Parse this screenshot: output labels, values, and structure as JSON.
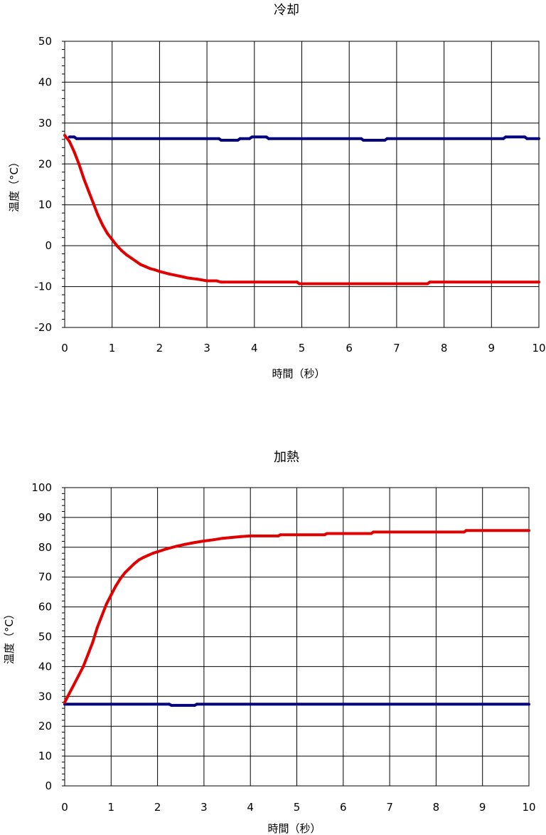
{
  "chart_data": [
    {
      "type": "line",
      "title": "冷却",
      "xlabel": "時間（秒）",
      "ylabel": "温度（°C）",
      "xlim": [
        0,
        10
      ],
      "ylim": [
        -20,
        50
      ],
      "x_ticks": [
        "0",
        "1",
        "2",
        "3",
        "4",
        "5",
        "6",
        "7",
        "8",
        "9",
        "10"
      ],
      "y_ticks": [
        "50",
        "40",
        "30",
        "20",
        "10",
        "0",
        "-10",
        "-20"
      ],
      "grid": true,
      "series": [
        {
          "color": "#000080",
          "points": [
            [
              0.1,
              26.6
            ],
            [
              0.2,
              26.6
            ],
            [
              0.25,
              26.2
            ],
            [
              1,
              26.2
            ],
            [
              2,
              26.2
            ],
            [
              3,
              26.2
            ],
            [
              3.25,
              26.2
            ],
            [
              3.3,
              25.8
            ],
            [
              3.65,
              25.8
            ],
            [
              3.7,
              26.2
            ],
            [
              3.9,
              26.2
            ],
            [
              3.95,
              26.6
            ],
            [
              4.25,
              26.6
            ],
            [
              4.3,
              26.2
            ],
            [
              5,
              26.2
            ],
            [
              6,
              26.2
            ],
            [
              6.25,
              26.2
            ],
            [
              6.3,
              25.8
            ],
            [
              6.75,
              25.8
            ],
            [
              6.8,
              26.2
            ],
            [
              8,
              26.2
            ],
            [
              9,
              26.2
            ],
            [
              9.25,
              26.2
            ],
            [
              9.3,
              26.6
            ],
            [
              9.7,
              26.6
            ],
            [
              9.75,
              26.2
            ],
            [
              10,
              26.2
            ]
          ]
        },
        {
          "color": "#e00000",
          "points": [
            [
              0,
              27
            ],
            [
              0.1,
              25.5
            ],
            [
              0.2,
              23
            ],
            [
              0.3,
              20
            ],
            [
              0.4,
              16.5
            ],
            [
              0.5,
              13.5
            ],
            [
              0.6,
              10.5
            ],
            [
              0.7,
              7.5
            ],
            [
              0.8,
              5
            ],
            [
              0.9,
              3
            ],
            [
              1,
              1.5
            ],
            [
              1.1,
              0
            ],
            [
              1.2,
              -1.2
            ],
            [
              1.3,
              -2.2
            ],
            [
              1.4,
              -3
            ],
            [
              1.5,
              -3.8
            ],
            [
              1.6,
              -4.6
            ],
            [
              1.7,
              -5.1
            ],
            [
              1.8,
              -5.6
            ],
            [
              1.9,
              -5.9
            ],
            [
              2,
              -6.3
            ],
            [
              2.2,
              -6.9
            ],
            [
              2.4,
              -7.4
            ],
            [
              2.6,
              -7.9
            ],
            [
              2.8,
              -8.2
            ],
            [
              3,
              -8.6
            ],
            [
              3.2,
              -8.6
            ],
            [
              3.3,
              -8.9
            ],
            [
              4,
              -8.9
            ],
            [
              4.9,
              -8.9
            ],
            [
              4.95,
              -9.3
            ],
            [
              6,
              -9.3
            ],
            [
              7,
              -9.3
            ],
            [
              7.65,
              -9.3
            ],
            [
              7.7,
              -8.9
            ],
            [
              8,
              -8.9
            ],
            [
              9,
              -8.9
            ],
            [
              10,
              -8.9
            ]
          ]
        }
      ]
    },
    {
      "type": "line",
      "title": "加熱",
      "xlabel": "時間（秒）",
      "ylabel": "温度（°C）",
      "xlim": [
        0,
        10
      ],
      "ylim": [
        0,
        100
      ],
      "x_ticks": [
        "0",
        "1",
        "2",
        "3",
        "4",
        "5",
        "6",
        "7",
        "8",
        "9",
        "10"
      ],
      "y_ticks": [
        "100",
        "90",
        "80",
        "70",
        "60",
        "50",
        "40",
        "30",
        "20",
        "10",
        "0"
      ],
      "grid": true,
      "series": [
        {
          "color": "#000080",
          "points": [
            [
              0,
              27.4
            ],
            [
              1,
              27.4
            ],
            [
              2,
              27.4
            ],
            [
              2.25,
              27.4
            ],
            [
              2.3,
              27
            ],
            [
              2.8,
              27
            ],
            [
              2.85,
              27.4
            ],
            [
              4,
              27.4
            ],
            [
              6,
              27.4
            ],
            [
              8,
              27.4
            ],
            [
              10,
              27.4
            ]
          ]
        },
        {
          "color": "#e00000",
          "points": [
            [
              0,
              28
            ],
            [
              0.1,
              31
            ],
            [
              0.2,
              34
            ],
            [
              0.3,
              37
            ],
            [
              0.4,
              40
            ],
            [
              0.5,
              44
            ],
            [
              0.6,
              48
            ],
            [
              0.7,
              53
            ],
            [
              0.8,
              57
            ],
            [
              0.9,
              61
            ],
            [
              1,
              64
            ],
            [
              1.1,
              67
            ],
            [
              1.2,
              69.5
            ],
            [
              1.3,
              71.5
            ],
            [
              1.4,
              73
            ],
            [
              1.5,
              74.5
            ],
            [
              1.6,
              75.8
            ],
            [
              1.7,
              76.6
            ],
            [
              1.8,
              77.3
            ],
            [
              1.9,
              78
            ],
            [
              2,
              78.5
            ],
            [
              2.2,
              79.5
            ],
            [
              2.4,
              80.3
            ],
            [
              2.6,
              81
            ],
            [
              2.8,
              81.6
            ],
            [
              3,
              82.1
            ],
            [
              3.2,
              82.5
            ],
            [
              3.4,
              83
            ],
            [
              3.6,
              83.3
            ],
            [
              3.8,
              83.6
            ],
            [
              4,
              83.8
            ],
            [
              4.6,
              83.8
            ],
            [
              4.65,
              84.2
            ],
            [
              5.6,
              84.2
            ],
            [
              5.65,
              84.6
            ],
            [
              6.6,
              84.6
            ],
            [
              6.65,
              85.1
            ],
            [
              8.6,
              85.1
            ],
            [
              8.65,
              85.6
            ],
            [
              10,
              85.6
            ]
          ]
        }
      ]
    }
  ]
}
